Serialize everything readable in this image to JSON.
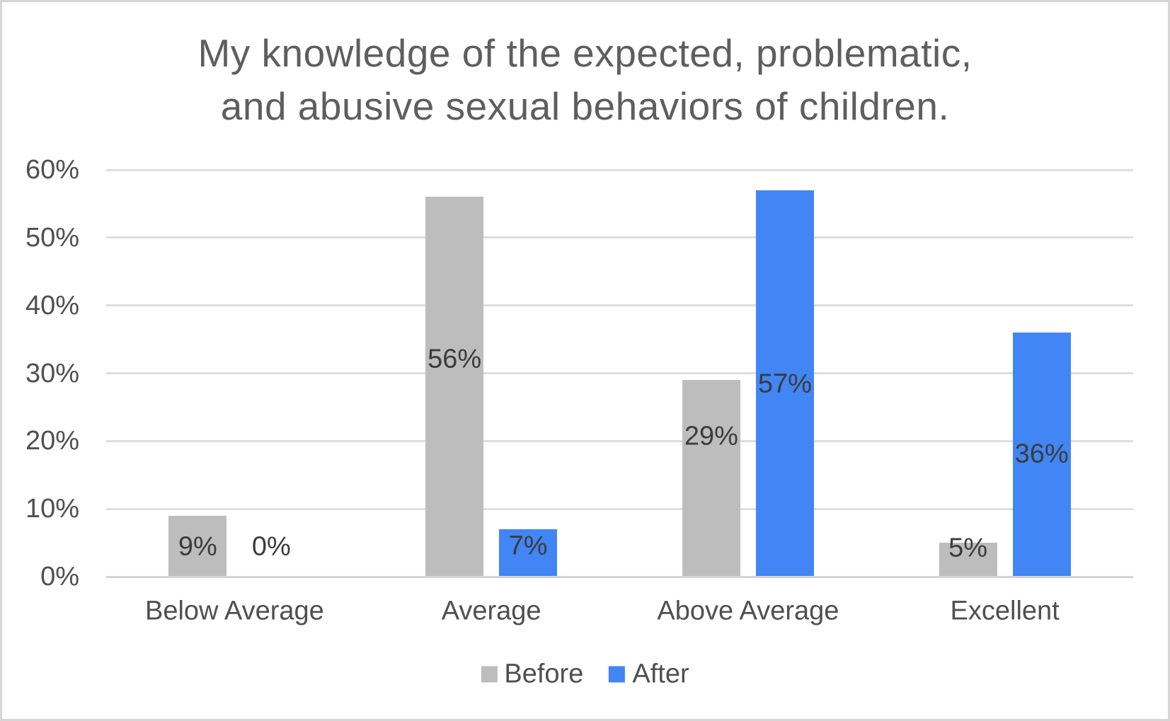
{
  "chart_data": {
    "type": "bar",
    "title": "My knowledge of the expected, problematic, and abusive sexual behaviors of children.",
    "title_lines": [
      "My knowledge of the expected, problematic,",
      "and abusive sexual behaviors of children."
    ],
    "categories": [
      "Below Average",
      "Average",
      "Above Average",
      "Excellent"
    ],
    "series": [
      {
        "name": "Before",
        "color": "#bdbdbd",
        "values": [
          9,
          56,
          29,
          5
        ],
        "labels": [
          "9%",
          "56%",
          "29%",
          "5%"
        ]
      },
      {
        "name": "After",
        "color": "#4285f4",
        "values": [
          0,
          7,
          57,
          36
        ],
        "labels": [
          "0%",
          "7%",
          "57%",
          "36%"
        ]
      }
    ],
    "xlabel": "",
    "ylabel": "",
    "ylim": [
      0,
      60
    ],
    "y_ticks": [
      "0%",
      "10%",
      "20%",
      "30%",
      "40%",
      "50%",
      "60%"
    ],
    "grid": true,
    "legend_position": "bottom"
  },
  "colors": {
    "bar_before": "#bdbdbd",
    "bar_after": "#4285f4",
    "gridline": "#dedede",
    "axis_line": "#d4d4d4",
    "title_text": "#5e5e5e",
    "axis_text": "#4f4f4f",
    "data_label_text": "#3c3c3c",
    "background": "#ffffff",
    "frame_border": "#d6d6d6"
  }
}
